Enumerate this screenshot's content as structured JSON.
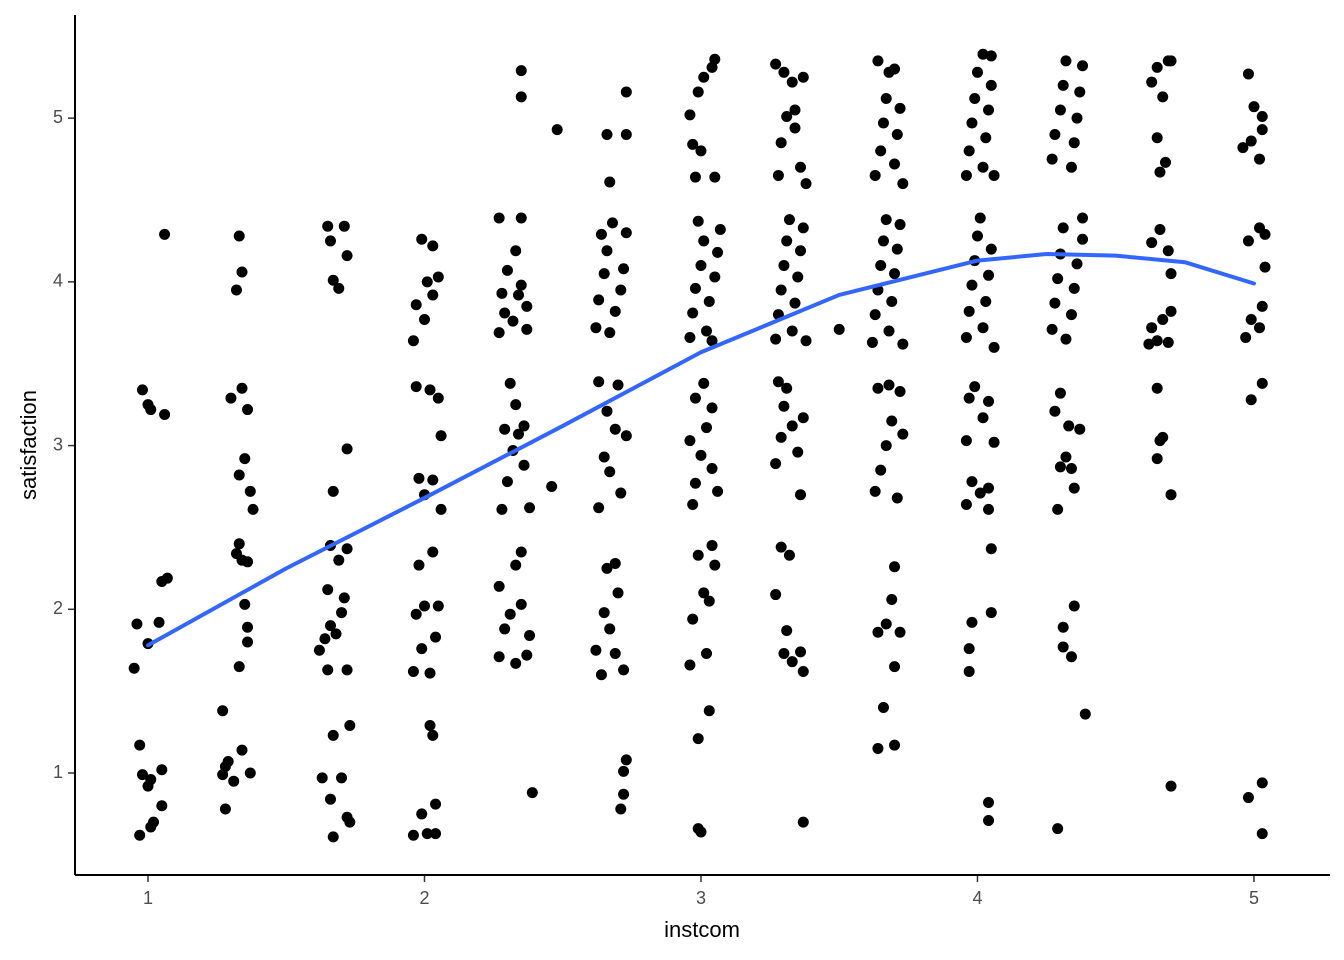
{
  "chart_data": {
    "type": "scatter",
    "x_label": "instcom",
    "y_label": "satisfaction",
    "xlim": [
      0.736,
      5.275
    ],
    "ylim": [
      0.377,
      5.63
    ],
    "xticks": [
      1,
      2,
      3,
      4,
      5
    ],
    "yticks": [
      1,
      2,
      3,
      4,
      5
    ],
    "grid": false,
    "series": [
      {
        "type": "scatter",
        "color": "#000000",
        "x": [
          0.96,
          0.95,
          1.0,
          1.04,
          1.05,
          1.07,
          0.98,
          1.0,
          1.01,
          1.06,
          1.06,
          0.97,
          0.98,
          1.0,
          1.01,
          1.05,
          1.05,
          1.02,
          1.01,
          0.97,
          1.27,
          1.27,
          1.28,
          1.29,
          1.31,
          1.34,
          1.37,
          1.28,
          1.33,
          1.36,
          1.36,
          1.35,
          1.32,
          1.33,
          1.34,
          1.36,
          1.33,
          1.35,
          1.37,
          1.38,
          1.3,
          1.34,
          1.36,
          1.32,
          1.34,
          1.33,
          1.63,
          1.66,
          1.67,
          1.7,
          1.72,
          1.73,
          1.67,
          1.73,
          1.62,
          1.64,
          1.66,
          1.68,
          1.7,
          1.71,
          1.72,
          1.65,
          1.65,
          1.66,
          1.69,
          1.72,
          1.67,
          1.72,
          1.65,
          1.66,
          1.67,
          1.69,
          1.71,
          1.72,
          1.96,
          1.99,
          2.01,
          2.04,
          2.04,
          2.02,
          2.03,
          1.96,
          1.97,
          1.99,
          2.0,
          2.02,
          2.04,
          2.05,
          1.98,
          2.03,
          1.98,
          2.0,
          2.03,
          2.06,
          1.97,
          2.02,
          2.05,
          2.06,
          1.96,
          1.97,
          2.0,
          2.01,
          2.03,
          2.05,
          1.99,
          2.03,
          2.39,
          2.27,
          2.29,
          2.31,
          2.33,
          2.35,
          2.37,
          2.38,
          2.27,
          2.33,
          2.35,
          2.28,
          2.3,
          2.32,
          2.34,
          2.36,
          2.38,
          2.29,
          2.31,
          2.33,
          2.36,
          2.27,
          2.29,
          2.32,
          2.34,
          2.37,
          2.28,
          2.3,
          2.33,
          2.35,
          2.37,
          2.27,
          2.35,
          2.35,
          2.35,
          2.48,
          2.46,
          2.71,
          2.72,
          2.72,
          2.73,
          2.62,
          2.64,
          2.65,
          2.67,
          2.69,
          2.7,
          2.72,
          2.66,
          2.69,
          2.63,
          2.65,
          2.67,
          2.69,
          2.71,
          2.73,
          2.63,
          2.66,
          2.7,
          2.62,
          2.63,
          2.65,
          2.66,
          2.67,
          2.69,
          2.71,
          2.72,
          2.73,
          2.64,
          2.68,
          2.67,
          2.66,
          2.73,
          2.73,
          2.99,
          3.0,
          2.99,
          3.03,
          2.96,
          2.97,
          3.01,
          3.03,
          3.05,
          2.99,
          3.04,
          3.02,
          2.97,
          2.98,
          3.0,
          3.02,
          3.04,
          3.06,
          2.96,
          2.98,
          3.01,
          3.04,
          2.96,
          2.97,
          2.98,
          3.0,
          3.01,
          3.02,
          3.03,
          3.05,
          3.06,
          3.07,
          2.99,
          3.04,
          2.98,
          3.05,
          2.97,
          2.96,
          2.99,
          3.01,
          3.04,
          3.05,
          3.0,
          3.37,
          3.27,
          3.29,
          3.32,
          3.31,
          3.33,
          3.36,
          3.37,
          3.3,
          3.27,
          3.29,
          3.3,
          3.33,
          3.35,
          3.36,
          3.37,
          3.28,
          3.31,
          3.27,
          3.28,
          3.29,
          3.3,
          3.31,
          3.32,
          3.33,
          3.34,
          3.35,
          3.36,
          3.37,
          3.38,
          3.28,
          3.29,
          3.31,
          3.34,
          3.36,
          3.38,
          3.27,
          3.3,
          3.33,
          3.37,
          3.34,
          3.5,
          3.64,
          3.66,
          3.7,
          3.64,
          3.67,
          3.69,
          3.7,
          3.72,
          3.7,
          3.63,
          3.65,
          3.67,
          3.69,
          3.71,
          3.73,
          3.64,
          3.68,
          3.72,
          3.62,
          3.63,
          3.64,
          3.65,
          3.66,
          3.67,
          3.68,
          3.69,
          3.7,
          3.71,
          3.72,
          3.73,
          3.63,
          3.65,
          3.66,
          3.67,
          3.68,
          3.7,
          3.71,
          3.72,
          3.73,
          3.64,
          3.7,
          4.04,
          4.04,
          3.97,
          3.97,
          3.98,
          4.05,
          4.05,
          3.96,
          3.98,
          4.01,
          4.04,
          4.04,
          3.96,
          3.97,
          3.99,
          4.02,
          4.04,
          4.06,
          3.96,
          3.97,
          3.98,
          3.99,
          4.0,
          4.01,
          4.02,
          4.03,
          4.04,
          4.05,
          4.06,
          3.96,
          3.97,
          3.98,
          3.99,
          4.0,
          4.02,
          4.03,
          4.04,
          4.05,
          4.06,
          4.02,
          4.05,
          4.29,
          4.39,
          4.31,
          4.31,
          4.34,
          4.35,
          4.29,
          4.3,
          4.32,
          4.34,
          4.35,
          4.37,
          4.33,
          4.28,
          4.3,
          4.27,
          4.28,
          4.29,
          4.3,
          4.31,
          4.32,
          4.34,
          4.35,
          4.36,
          4.38,
          4.38,
          4.27,
          4.28,
          4.3,
          4.31,
          4.32,
          4.34,
          4.35,
          4.36,
          4.37,
          4.38,
          4.7,
          4.65,
          4.66,
          4.67,
          4.65,
          4.7,
          4.62,
          4.63,
          4.65,
          4.67,
          4.69,
          4.7,
          4.63,
          4.66,
          4.69,
          4.7,
          4.66,
          4.68,
          4.65,
          4.63,
          4.65,
          4.67,
          4.69,
          4.7,
          4.98,
          5.03,
          5.03,
          4.99,
          5.03,
          4.97,
          4.99,
          5.02,
          5.03,
          4.98,
          5.02,
          5.04,
          5.04,
          4.96,
          4.99,
          5.02,
          5.03,
          5.0,
          4.98,
          5.03
        ],
        "values": [
          1.91,
          1.64,
          1.79,
          1.92,
          2.17,
          2.19,
          3.34,
          3.25,
          3.22,
          3.19,
          4.29,
          1.17,
          0.99,
          0.92,
          0.96,
          1.02,
          0.8,
          0.7,
          0.67,
          0.62,
          1.38,
          0.99,
          1.04,
          1.07,
          0.95,
          1.14,
          1.0,
          0.78,
          1.65,
          1.89,
          1.8,
          2.03,
          2.34,
          2.4,
          2.3,
          2.29,
          2.82,
          2.92,
          2.72,
          2.61,
          3.29,
          3.35,
          3.22,
          3.95,
          4.06,
          4.28,
          0.97,
          0.84,
          0.61,
          0.97,
          0.73,
          0.7,
          1.23,
          1.29,
          1.75,
          1.82,
          1.9,
          1.85,
          1.98,
          2.07,
          1.63,
          1.63,
          2.12,
          2.39,
          2.3,
          2.37,
          2.72,
          2.98,
          4.34,
          4.25,
          4.01,
          3.96,
          4.34,
          4.16,
          0.62,
          0.75,
          0.63,
          0.63,
          0.81,
          1.29,
          1.23,
          1.62,
          1.97,
          1.76,
          2.02,
          1.61,
          1.83,
          2.02,
          2.27,
          2.35,
          2.8,
          2.7,
          2.79,
          2.61,
          3.36,
          3.34,
          3.29,
          3.06,
          3.64,
          3.86,
          3.77,
          4.0,
          3.92,
          4.03,
          4.26,
          4.22,
          0.88,
          1.71,
          1.88,
          1.97,
          1.67,
          2.03,
          1.72,
          1.84,
          2.14,
          2.27,
          2.35,
          2.61,
          2.78,
          2.97,
          3.07,
          2.88,
          2.62,
          3.1,
          3.38,
          3.25,
          3.12,
          3.69,
          3.81,
          3.76,
          3.92,
          3.71,
          3.93,
          4.07,
          4.19,
          3.98,
          3.85,
          4.39,
          4.39,
          5.29,
          5.13,
          4.93,
          2.75,
          0.78,
          0.87,
          1.01,
          1.08,
          1.75,
          1.6,
          1.98,
          1.88,
          1.73,
          2.1,
          1.63,
          2.25,
          2.28,
          2.62,
          2.93,
          2.84,
          3.1,
          2.71,
          3.06,
          3.39,
          3.21,
          3.37,
          3.72,
          3.89,
          4.05,
          4.19,
          3.69,
          3.82,
          3.95,
          4.08,
          4.3,
          4.29,
          4.36,
          4.61,
          4.9,
          4.9,
          5.16,
          0.66,
          0.64,
          1.21,
          1.38,
          1.66,
          1.94,
          2.1,
          2.05,
          2.27,
          2.33,
          2.39,
          1.73,
          2.64,
          2.77,
          2.94,
          3.11,
          2.86,
          2.72,
          3.03,
          3.29,
          3.38,
          3.23,
          3.66,
          3.81,
          3.96,
          4.1,
          4.25,
          3.7,
          3.88,
          4.03,
          4.18,
          4.32,
          4.37,
          3.64,
          4.64,
          4.64,
          4.84,
          5.02,
          5.16,
          5.25,
          5.31,
          5.36,
          4.8,
          0.7,
          2.09,
          2.38,
          2.33,
          1.87,
          1.68,
          1.74,
          1.62,
          1.73,
          2.89,
          3.05,
          3.24,
          3.12,
          2.96,
          2.7,
          3.17,
          3.39,
          3.35,
          3.65,
          3.8,
          3.95,
          4.1,
          4.25,
          4.38,
          3.7,
          3.87,
          4.03,
          4.19,
          4.33,
          3.64,
          4.65,
          4.85,
          5.01,
          4.94,
          4.7,
          4.6,
          5.33,
          5.28,
          5.22,
          5.25,
          5.05,
          3.71,
          1.15,
          1.4,
          1.17,
          1.86,
          1.91,
          2.06,
          2.26,
          1.86,
          1.65,
          2.72,
          2.85,
          3.0,
          3.15,
          2.68,
          3.07,
          3.35,
          3.37,
          3.33,
          3.63,
          3.8,
          3.95,
          4.1,
          4.25,
          4.38,
          3.7,
          3.88,
          4.05,
          4.2,
          4.35,
          3.62,
          4.65,
          4.8,
          4.97,
          5.12,
          5.28,
          4.72,
          4.9,
          5.06,
          4.6,
          5.35,
          5.3,
          0.71,
          0.82,
          1.62,
          1.76,
          1.92,
          1.98,
          2.37,
          2.64,
          2.78,
          2.71,
          2.74,
          2.61,
          3.03,
          3.29,
          3.36,
          3.17,
          3.27,
          3.02,
          3.66,
          3.82,
          3.98,
          4.13,
          4.28,
          4.39,
          3.72,
          3.88,
          4.04,
          4.2,
          3.6,
          4.65,
          4.8,
          4.97,
          5.12,
          5.28,
          4.7,
          4.88,
          5.05,
          5.2,
          4.65,
          5.39,
          5.38,
          0.66,
          1.36,
          1.77,
          1.89,
          1.71,
          2.02,
          2.61,
          2.87,
          2.93,
          2.86,
          2.74,
          3.1,
          3.12,
          3.21,
          3.32,
          3.71,
          3.87,
          4.02,
          4.17,
          4.33,
          3.65,
          3.8,
          3.96,
          4.11,
          4.26,
          4.39,
          4.75,
          4.9,
          5.05,
          5.2,
          5.35,
          4.7,
          4.85,
          5.0,
          5.16,
          5.32,
          0.92,
          2.92,
          3.03,
          3.05,
          3.35,
          2.7,
          3.62,
          3.72,
          3.64,
          3.77,
          3.63,
          3.82,
          4.24,
          4.32,
          4.19,
          4.05,
          4.67,
          4.73,
          4.88,
          5.22,
          5.31,
          5.13,
          5.35,
          5.35,
          0.85,
          0.94,
          0.63,
          3.28,
          3.38,
          3.66,
          3.77,
          3.72,
          3.85,
          4.25,
          4.33,
          4.09,
          4.29,
          4.82,
          4.86,
          4.75,
          4.93,
          5.07,
          5.27,
          5.01
        ]
      },
      {
        "type": "line",
        "color": "#3366ff",
        "x": [
          1,
          1.5,
          2,
          2.5,
          3,
          3.5,
          4,
          4.25,
          4.5,
          4.75,
          5
        ],
        "values": [
          1.78,
          2.25,
          2.68,
          3.12,
          3.57,
          3.92,
          4.13,
          4.17,
          4.16,
          4.12,
          3.99
        ]
      }
    ]
  }
}
